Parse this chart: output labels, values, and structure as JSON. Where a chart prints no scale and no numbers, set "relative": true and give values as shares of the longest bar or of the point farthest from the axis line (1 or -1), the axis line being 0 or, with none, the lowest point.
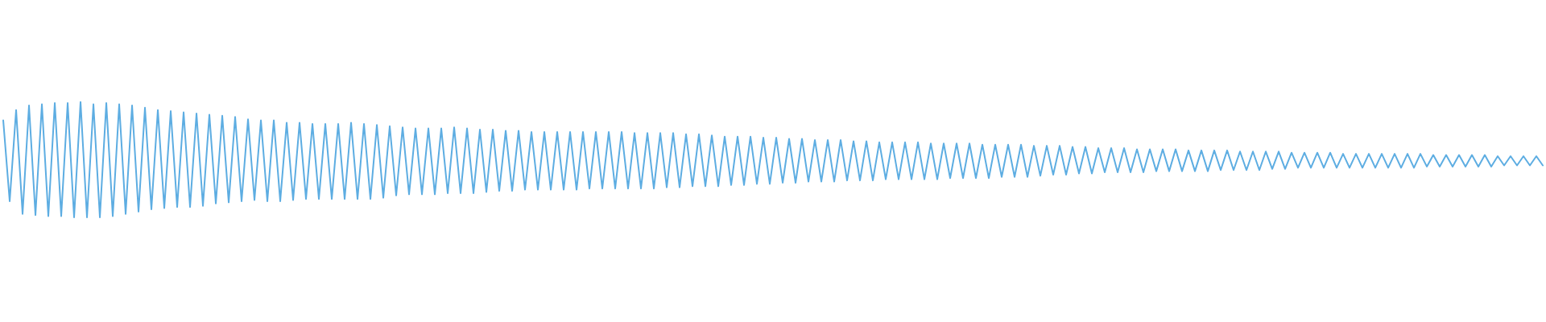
{
  "chart_data": {
    "type": "line",
    "relative": true,
    "color": "#5dade2",
    "categories": [
      null,
      null,
      null,
      null,
      null,
      null,
      null,
      null,
      null,
      null,
      null,
      null,
      null,
      null,
      null,
      null,
      null,
      null,
      null,
      null,
      null,
      null,
      null,
      null,
      null,
      null,
      null,
      null,
      null,
      null,
      null,
      null,
      null,
      null,
      null,
      null,
      null,
      null,
      null,
      null,
      null,
      null,
      null,
      null,
      null,
      null,
      null,
      null,
      null,
      null,
      null,
      null,
      null,
      null,
      null,
      null,
      null,
      null,
      null,
      null,
      null,
      null,
      null,
      null,
      null,
      null,
      null,
      null,
      null,
      null,
      null,
      null,
      null,
      null,
      null,
      null,
      null,
      null,
      null,
      null,
      null,
      null,
      null,
      null,
      null,
      null,
      null,
      null,
      null,
      null,
      null,
      null,
      null,
      null,
      null,
      null,
      null,
      null,
      null,
      null,
      null,
      null,
      null,
      null,
      null,
      null,
      null,
      null,
      null,
      null,
      null,
      null,
      null,
      null,
      null,
      null,
      null,
      null,
      null,
      null,
      null,
      null,
      null,
      null,
      null,
      null,
      null,
      null,
      null,
      null,
      null,
      null,
      null,
      null,
      null,
      null,
      null,
      null,
      null,
      null,
      null,
      null,
      null,
      null,
      null,
      null,
      null,
      null,
      null,
      null,
      null,
      null,
      null,
      null,
      null,
      null,
      null,
      null,
      null,
      null,
      null,
      null,
      null,
      null,
      null,
      null,
      null,
      null,
      null,
      null,
      null,
      null,
      null,
      null,
      null,
      null,
      null,
      null,
      null,
      null,
      null,
      null,
      null,
      null,
      null,
      null,
      null,
      null,
      null,
      null,
      null,
      null,
      null,
      null,
      null,
      null,
      null,
      null,
      null,
      null,
      null,
      null,
      null,
      null,
      null,
      null,
      null,
      null,
      null,
      null,
      null,
      null,
      null,
      null,
      null,
      null,
      null,
      null,
      null,
      null,
      null,
      null,
      null,
      null,
      null,
      null,
      null,
      null,
      null,
      null,
      null,
      null,
      null,
      null,
      null,
      null,
      null,
      null,
      null,
      null
    ],
    "values": [
      0.84,
      0.14,
      0.93,
      0.03,
      0.97,
      0.02,
      0.98,
      0.01,
      0.99,
      0.01,
      0.99,
      0,
      1.0,
      0,
      0.98,
      0,
      0.99,
      0.01,
      0.98,
      0.03,
      0.97,
      0.05,
      0.95,
      0.07,
      0.93,
      0.08,
      0.92,
      0.09,
      0.91,
      0.09,
      0.9,
      0.1,
      0.89,
      0.12,
      0.88,
      0.13,
      0.87,
      0.14,
      0.85,
      0.15,
      0.84,
      0.14,
      0.84,
      0.14,
      0.82,
      0.15,
      0.82,
      0.16,
      0.81,
      0.16,
      0.81,
      0.16,
      0.81,
      0.16,
      0.82,
      0.16,
      0.81,
      0.16,
      0.8,
      0.17,
      0.79,
      0.19,
      0.78,
      0.2,
      0.77,
      0.2,
      0.77,
      0.2,
      0.77,
      0.21,
      0.78,
      0.21,
      0.77,
      0.21,
      0.76,
      0.22,
      0.76,
      0.23,
      0.75,
      0.23,
      0.75,
      0.24,
      0.74,
      0.24,
      0.74,
      0.24,
      0.74,
      0.24,
      0.74,
      0.24,
      0.74,
      0.25,
      0.74,
      0.25,
      0.74,
      0.25,
      0.74,
      0.25,
      0.73,
      0.25,
      0.73,
      0.25,
      0.73,
      0.26,
      0.73,
      0.26,
      0.72,
      0.27,
      0.72,
      0.27,
      0.71,
      0.27,
      0.7,
      0.28,
      0.7,
      0.28,
      0.7,
      0.29,
      0.69,
      0.29,
      0.69,
      0.3,
      0.68,
      0.3,
      0.68,
      0.31,
      0.67,
      0.31,
      0.67,
      0.31,
      0.67,
      0.32,
      0.66,
      0.32,
      0.66,
      0.32,
      0.65,
      0.33,
      0.65,
      0.33,
      0.65,
      0.33,
      0.65,
      0.33,
      0.64,
      0.33,
      0.64,
      0.34,
      0.64,
      0.34,
      0.64,
      0.34,
      0.63,
      0.34,
      0.63,
      0.35,
      0.63,
      0.35,
      0.63,
      0.35,
      0.62,
      0.36,
      0.62,
      0.37,
      0.62,
      0.37,
      0.61,
      0.38,
      0.61,
      0.38,
      0.6,
      0.39,
      0.6,
      0.39,
      0.6,
      0.39,
      0.59,
      0.39,
      0.59,
      0.4,
      0.59,
      0.4,
      0.59,
      0.4,
      0.58,
      0.4,
      0.58,
      0.4,
      0.58,
      0.41,
      0.58,
      0.41,
      0.57,
      0.41,
      0.57,
      0.41,
      0.57,
      0.42,
      0.57,
      0.42,
      0.56,
      0.43,
      0.56,
      0.43,
      0.56,
      0.43,
      0.56,
      0.43,
      0.55,
      0.43,
      0.55,
      0.43,
      0.55,
      0.43,
      0.55,
      0.43,
      0.55,
      0.43,
      0.55,
      0.43,
      0.55,
      0.44,
      0.54,
      0.44,
      0.54,
      0.44,
      0.54,
      0.44,
      0.54,
      0.44,
      0.54,
      0.44,
      0.53,
      0.45,
      0.53,
      0.45,
      0.53,
      0.45,
      0.53,
      0.45
    ]
  }
}
